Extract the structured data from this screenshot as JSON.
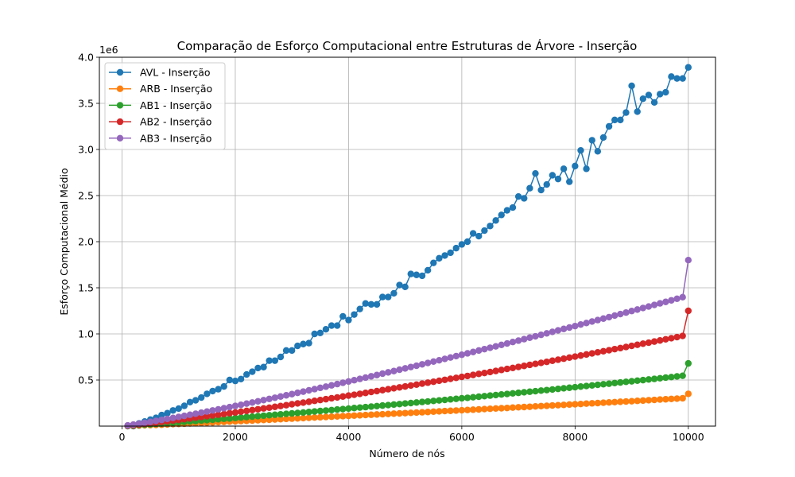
{
  "chart_data": {
    "type": "line",
    "title": "Comparação de Esforço Computacional entre Estruturas de Árvore - Inserção",
    "xlabel": "Número de nós",
    "ylabel": "Esforço Computacional Médio",
    "y_offset_label": "1e6",
    "xlim": [
      -400,
      10480
    ],
    "ylim": [
      0,
      4.0
    ],
    "y_multiplier": 1000000,
    "x_ticks": [
      0,
      2000,
      4000,
      6000,
      8000,
      10000
    ],
    "x_tick_labels": [
      "0",
      "2000",
      "4000",
      "6000",
      "8000",
      "10000"
    ],
    "y_ticks": [
      0.5,
      1.0,
      1.5,
      2.0,
      2.5,
      3.0,
      3.5,
      4.0
    ],
    "y_tick_labels": [
      "0.5",
      "1.0",
      "1.5",
      "2.0",
      "2.5",
      "3.0",
      "3.5",
      "4.0"
    ],
    "grid": true,
    "legend_position": "upper-left",
    "x": [
      100,
      200,
      300,
      400,
      500,
      600,
      700,
      800,
      900,
      1000,
      1100,
      1200,
      1300,
      1400,
      1500,
      1600,
      1700,
      1800,
      1900,
      2000,
      2100,
      2200,
      2300,
      2400,
      2500,
      2600,
      2700,
      2800,
      2900,
      3000,
      3100,
      3200,
      3300,
      3400,
      3500,
      3600,
      3700,
      3800,
      3900,
      4000,
      4100,
      4200,
      4300,
      4400,
      4500,
      4600,
      4700,
      4800,
      4900,
      5000,
      5100,
      5200,
      5300,
      5400,
      5500,
      5600,
      5700,
      5800,
      5900,
      6000,
      6100,
      6200,
      6300,
      6400,
      6500,
      6600,
      6700,
      6800,
      6900,
      7000,
      7100,
      7200,
      7300,
      7400,
      7500,
      7600,
      7700,
      7800,
      7900,
      8000,
      8100,
      8200,
      8300,
      8400,
      8500,
      8600,
      8700,
      8800,
      8900,
      9000,
      9100,
      9200,
      9300,
      9400,
      9500,
      9600,
      9700,
      9800,
      9900,
      10000
    ],
    "series": [
      {
        "name": "AVL - Inserção",
        "color": "#1f77b4",
        "values": [
          0.0,
          0.0,
          0.03,
          0.05,
          0.07,
          0.09,
          0.12,
          0.14,
          0.17,
          0.19,
          0.22,
          0.26,
          0.28,
          0.31,
          0.35,
          0.38,
          0.4,
          0.43,
          0.5,
          0.49,
          0.51,
          0.56,
          0.59,
          0.63,
          0.64,
          0.71,
          0.71,
          0.75,
          0.82,
          0.82,
          0.87,
          0.89,
          0.9,
          1.0,
          1.01,
          1.05,
          1.09,
          1.09,
          1.19,
          1.15,
          1.21,
          1.27,
          1.33,
          1.32,
          1.32,
          1.4,
          1.4,
          1.44,
          1.53,
          1.51,
          1.65,
          1.64,
          1.63,
          1.69,
          1.77,
          1.82,
          1.85,
          1.88,
          1.93,
          1.97,
          2.0,
          2.09,
          2.06,
          2.12,
          2.17,
          2.23,
          2.29,
          2.34,
          2.37,
          2.49,
          2.47,
          2.58,
          2.74,
          2.56,
          2.62,
          2.72,
          2.68,
          2.79,
          2.65,
          2.82,
          2.99,
          2.79,
          3.1,
          2.98,
          3.13,
          3.25,
          3.32,
          3.32,
          3.4,
          3.69,
          3.41,
          3.55,
          3.59,
          3.51,
          3.6,
          3.62,
          3.79,
          3.77,
          3.77,
          3.89
        ]
      },
      {
        "name": "ARB - Inserção",
        "color": "#ff7f0e",
        "values": [
          0.002,
          0.004,
          0.006,
          0.009,
          0.011,
          0.013,
          0.015,
          0.018,
          0.021,
          0.023,
          0.026,
          0.029,
          0.031,
          0.034,
          0.037,
          0.04,
          0.043,
          0.046,
          0.049,
          0.052,
          0.055,
          0.057,
          0.06,
          0.063,
          0.066,
          0.069,
          0.072,
          0.075,
          0.078,
          0.081,
          0.084,
          0.087,
          0.09,
          0.093,
          0.096,
          0.099,
          0.102,
          0.105,
          0.108,
          0.111,
          0.114,
          0.117,
          0.12,
          0.123,
          0.126,
          0.129,
          0.132,
          0.135,
          0.138,
          0.141,
          0.144,
          0.147,
          0.15,
          0.153,
          0.157,
          0.16,
          0.163,
          0.166,
          0.169,
          0.172,
          0.175,
          0.178,
          0.181,
          0.185,
          0.188,
          0.191,
          0.194,
          0.197,
          0.201,
          0.204,
          0.207,
          0.21,
          0.214,
          0.217,
          0.22,
          0.224,
          0.227,
          0.23,
          0.234,
          0.237,
          0.24,
          0.244,
          0.247,
          0.25,
          0.254,
          0.257,
          0.26,
          0.264,
          0.267,
          0.27,
          0.274,
          0.277,
          0.281,
          0.284,
          0.288,
          0.291,
          0.295,
          0.298,
          0.302,
          0.35
        ]
      },
      {
        "name": "AB1 - Inserção",
        "color": "#2ca02c",
        "values": [
          0.003,
          0.007,
          0.011,
          0.015,
          0.019,
          0.024,
          0.028,
          0.032,
          0.037,
          0.041,
          0.046,
          0.05,
          0.055,
          0.06,
          0.064,
          0.069,
          0.074,
          0.079,
          0.083,
          0.088,
          0.093,
          0.098,
          0.103,
          0.108,
          0.113,
          0.118,
          0.123,
          0.128,
          0.133,
          0.138,
          0.143,
          0.148,
          0.153,
          0.159,
          0.164,
          0.169,
          0.174,
          0.18,
          0.185,
          0.19,
          0.196,
          0.201,
          0.206,
          0.212,
          0.217,
          0.223,
          0.228,
          0.234,
          0.239,
          0.245,
          0.25,
          0.256,
          0.262,
          0.267,
          0.273,
          0.279,
          0.284,
          0.29,
          0.296,
          0.302,
          0.307,
          0.313,
          0.319,
          0.325,
          0.331,
          0.337,
          0.343,
          0.349,
          0.355,
          0.361,
          0.367,
          0.373,
          0.379,
          0.385,
          0.391,
          0.397,
          0.404,
          0.41,
          0.416,
          0.422,
          0.429,
          0.435,
          0.441,
          0.448,
          0.454,
          0.46,
          0.467,
          0.473,
          0.48,
          0.486,
          0.493,
          0.499,
          0.506,
          0.512,
          0.519,
          0.526,
          0.532,
          0.539,
          0.546,
          0.68
        ]
      },
      {
        "name": "AB2 - Inserção",
        "color": "#d62728",
        "values": [
          0.005,
          0.011,
          0.017,
          0.024,
          0.031,
          0.038,
          0.045,
          0.052,
          0.06,
          0.067,
          0.075,
          0.083,
          0.091,
          0.099,
          0.107,
          0.115,
          0.123,
          0.131,
          0.14,
          0.148,
          0.157,
          0.165,
          0.174,
          0.183,
          0.192,
          0.2,
          0.209,
          0.218,
          0.227,
          0.237,
          0.246,
          0.255,
          0.264,
          0.274,
          0.283,
          0.292,
          0.302,
          0.311,
          0.321,
          0.331,
          0.34,
          0.35,
          0.36,
          0.37,
          0.38,
          0.39,
          0.4,
          0.41,
          0.42,
          0.43,
          0.44,
          0.45,
          0.461,
          0.471,
          0.481,
          0.492,
          0.502,
          0.513,
          0.523,
          0.534,
          0.544,
          0.555,
          0.566,
          0.576,
          0.587,
          0.598,
          0.609,
          0.62,
          0.631,
          0.642,
          0.653,
          0.664,
          0.675,
          0.686,
          0.697,
          0.709,
          0.72,
          0.731,
          0.743,
          0.754,
          0.765,
          0.777,
          0.788,
          0.8,
          0.812,
          0.823,
          0.835,
          0.846,
          0.858,
          0.87,
          0.882,
          0.894,
          0.905,
          0.917,
          0.929,
          0.941,
          0.953,
          0.965,
          0.978,
          1.25
        ]
      },
      {
        "name": "AB3 - Inserção",
        "color": "#9467bd",
        "values": [
          0.008,
          0.017,
          0.026,
          0.036,
          0.046,
          0.057,
          0.067,
          0.078,
          0.089,
          0.1,
          0.111,
          0.123,
          0.134,
          0.146,
          0.158,
          0.17,
          0.182,
          0.194,
          0.206,
          0.219,
          0.231,
          0.244,
          0.256,
          0.269,
          0.282,
          0.295,
          0.308,
          0.321,
          0.334,
          0.347,
          0.361,
          0.374,
          0.388,
          0.401,
          0.415,
          0.428,
          0.442,
          0.456,
          0.47,
          0.484,
          0.498,
          0.512,
          0.526,
          0.54,
          0.554,
          0.569,
          0.583,
          0.597,
          0.612,
          0.626,
          0.641,
          0.655,
          0.67,
          0.685,
          0.7,
          0.714,
          0.729,
          0.744,
          0.759,
          0.774,
          0.789,
          0.804,
          0.82,
          0.835,
          0.85,
          0.865,
          0.881,
          0.896,
          0.912,
          0.927,
          0.943,
          0.959,
          0.974,
          0.99,
          1.006,
          1.022,
          1.038,
          1.054,
          1.069,
          1.085,
          1.102,
          1.118,
          1.134,
          1.15,
          1.166,
          1.182,
          1.199,
          1.215,
          1.231,
          1.248,
          1.264,
          1.281,
          1.297,
          1.314,
          1.331,
          1.347,
          1.364,
          1.381,
          1.398,
          1.8
        ]
      }
    ]
  }
}
